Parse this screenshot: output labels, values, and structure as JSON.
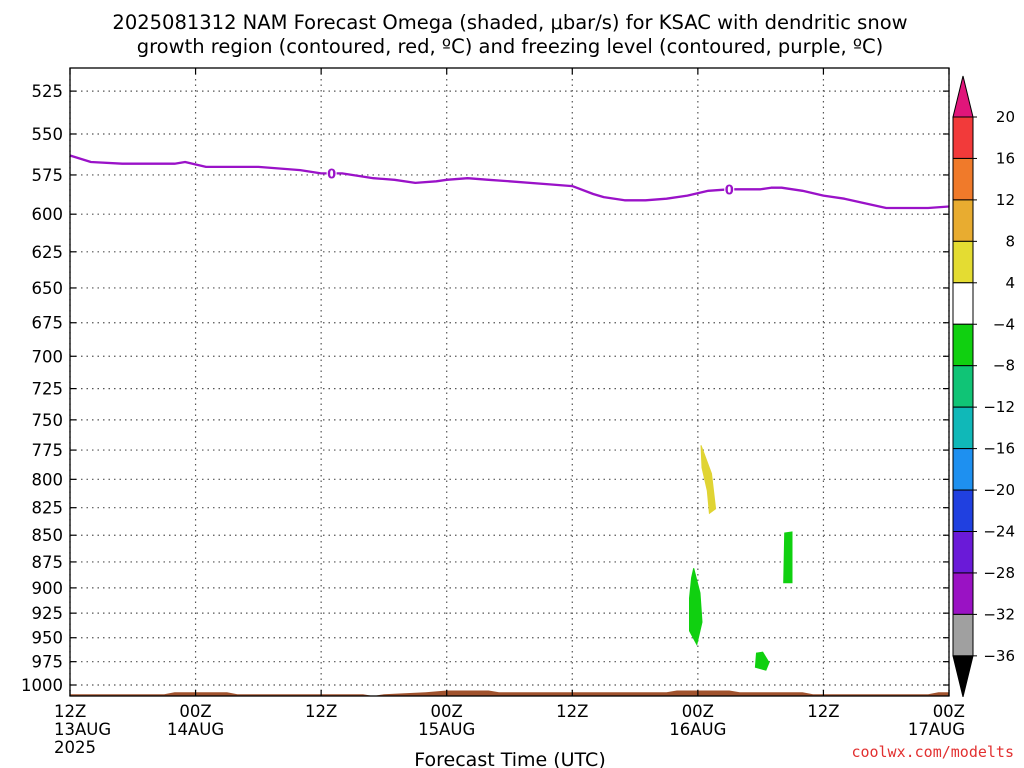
{
  "title_line1": "2025081312 NAM Forecast Omega (shaded, μbar/s) for KSAC with dendritic snow",
  "title_line2": "growth region (contoured, red, ºC) and freezing level (contoured, purple, ºC)",
  "credit": "coolwx.com/modelts",
  "credit_color": "#e23030",
  "chart_data": {
    "type": "time-height",
    "xlabel": "Forecast Time (UTC)",
    "ylabel": "",
    "x_range_hours": [
      0,
      84
    ],
    "y_range_hPa": [
      512,
      1012
    ],
    "y_ticks": [
      525,
      550,
      575,
      600,
      625,
      650,
      675,
      700,
      725,
      750,
      775,
      800,
      825,
      850,
      875,
      900,
      925,
      950,
      975,
      1000
    ],
    "x_ticks": [
      {
        "hour": 0,
        "label": "12Z",
        "date": "13AUG",
        "year": "2025"
      },
      {
        "hour": 12,
        "label": "00Z",
        "date": "14AUG"
      },
      {
        "hour": 24,
        "label": "12Z"
      },
      {
        "hour": 36,
        "label": "00Z",
        "date": "15AUG"
      },
      {
        "hour": 48,
        "label": "12Z"
      },
      {
        "hour": 60,
        "label": "00Z",
        "date": "16AUG"
      },
      {
        "hour": 72,
        "label": "12Z"
      },
      {
        "hour": 84,
        "label": "00Z",
        "date": "17AUG"
      }
    ],
    "grid": true,
    "freezing_level": {
      "label": "0",
      "color": "#9a12c8",
      "label_hours": [
        25,
        63
      ],
      "points": [
        [
          0,
          563
        ],
        [
          2,
          567
        ],
        [
          5,
          568
        ],
        [
          10,
          568
        ],
        [
          11,
          567
        ],
        [
          13,
          570
        ],
        [
          18,
          570
        ],
        [
          22,
          572
        ],
        [
          24,
          574
        ],
        [
          26,
          574
        ],
        [
          29,
          577
        ],
        [
          31,
          578
        ],
        [
          33,
          580
        ],
        [
          35,
          579
        ],
        [
          36,
          578
        ],
        [
          38,
          577
        ],
        [
          40,
          578
        ],
        [
          42,
          579
        ],
        [
          46,
          581
        ],
        [
          48,
          582
        ],
        [
          50,
          587
        ],
        [
          51,
          589
        ],
        [
          53,
          591
        ],
        [
          55,
          591
        ],
        [
          57,
          590
        ],
        [
          59,
          588
        ],
        [
          61,
          585
        ],
        [
          63,
          584
        ],
        [
          66,
          584
        ],
        [
          67,
          583
        ],
        [
          68,
          583
        ],
        [
          70,
          585
        ],
        [
          72,
          588
        ],
        [
          74,
          590
        ],
        [
          76,
          593
        ],
        [
          78,
          596
        ],
        [
          80,
          596
        ],
        [
          82,
          596
        ],
        [
          84,
          595
        ]
      ]
    },
    "omega_regions": [
      {
        "value_bin": "4 to 8",
        "color": "#e0d433",
        "points": [
          [
            60.3,
            771
          ],
          [
            61.3,
            795
          ],
          [
            61.7,
            826
          ],
          [
            61.1,
            830
          ],
          [
            60.9,
            810
          ],
          [
            60.4,
            790
          ]
        ]
      },
      {
        "value_bin": "-8 to -4",
        "color": "#10d010",
        "points": [
          [
            59.6,
            881
          ],
          [
            60.2,
            905
          ],
          [
            60.4,
            934
          ],
          [
            59.9,
            957
          ],
          [
            59.2,
            943
          ],
          [
            59.2,
            910
          ],
          [
            59.4,
            890
          ]
        ]
      },
      {
        "value_bin": "-8 to -4",
        "color": "#10d010",
        "points": [
          [
            68.3,
            848
          ],
          [
            69.0,
            847
          ],
          [
            69.0,
            895
          ],
          [
            68.2,
            895
          ]
        ]
      },
      {
        "value_bin": "-8 to -4",
        "color": "#10d010",
        "points": [
          [
            65.6,
            966
          ],
          [
            66.2,
            965
          ],
          [
            66.8,
            976
          ],
          [
            66.5,
            984
          ],
          [
            65.5,
            981
          ]
        ]
      }
    ],
    "surface": {
      "color": "#a0522d",
      "points": [
        [
          0,
          1010
        ],
        [
          9,
          1010
        ],
        [
          10,
          1008
        ],
        [
          15,
          1008
        ],
        [
          16,
          1010
        ],
        [
          28,
          1010
        ],
        [
          29,
          1012
        ],
        [
          30,
          1010
        ],
        [
          34,
          1008
        ],
        [
          36,
          1006
        ],
        [
          40,
          1006
        ],
        [
          41,
          1008
        ],
        [
          57,
          1008
        ],
        [
          58,
          1006
        ],
        [
          63,
          1006
        ],
        [
          64,
          1008
        ],
        [
          70,
          1008
        ],
        [
          71,
          1010
        ],
        [
          82,
          1010
        ],
        [
          83,
          1008
        ],
        [
          84,
          1008
        ]
      ]
    },
    "colorbar": {
      "labels": [
        "20",
        "16",
        "12",
        "8",
        "4",
        "-4",
        "-8",
        "-12",
        "-16",
        "-20",
        "-24",
        "-28",
        "-32",
        "-36"
      ],
      "bins": [
        {
          "range": "16 to 20",
          "color": "#f23a3a"
        },
        {
          "range": "12 to 16",
          "color": "#f07a2a"
        },
        {
          "range": "8 to 12",
          "color": "#e8ac30"
        },
        {
          "range": "4 to 8",
          "color": "#e4dc32"
        },
        {
          "range": "-4 to 4",
          "color": "#ffffff"
        },
        {
          "range": "-8 to -4",
          "color": "#10d010"
        },
        {
          "range": "-12 to -8",
          "color": "#10c476"
        },
        {
          "range": "-16 to -12",
          "color": "#10b8b8"
        },
        {
          "range": "-20 to -16",
          "color": "#1e90f0"
        },
        {
          "range": "-24 to -20",
          "color": "#2040e0"
        },
        {
          "range": "-28 to -24",
          "color": "#6a1ad8"
        },
        {
          "range": "-32 to -28",
          "color": "#9a12c4"
        },
        {
          "range": "-36 to -32",
          "color": "#a0a0a0"
        }
      ],
      "max_arrow_color": "#e0157a",
      "min_arrow_color": "#000000"
    }
  }
}
